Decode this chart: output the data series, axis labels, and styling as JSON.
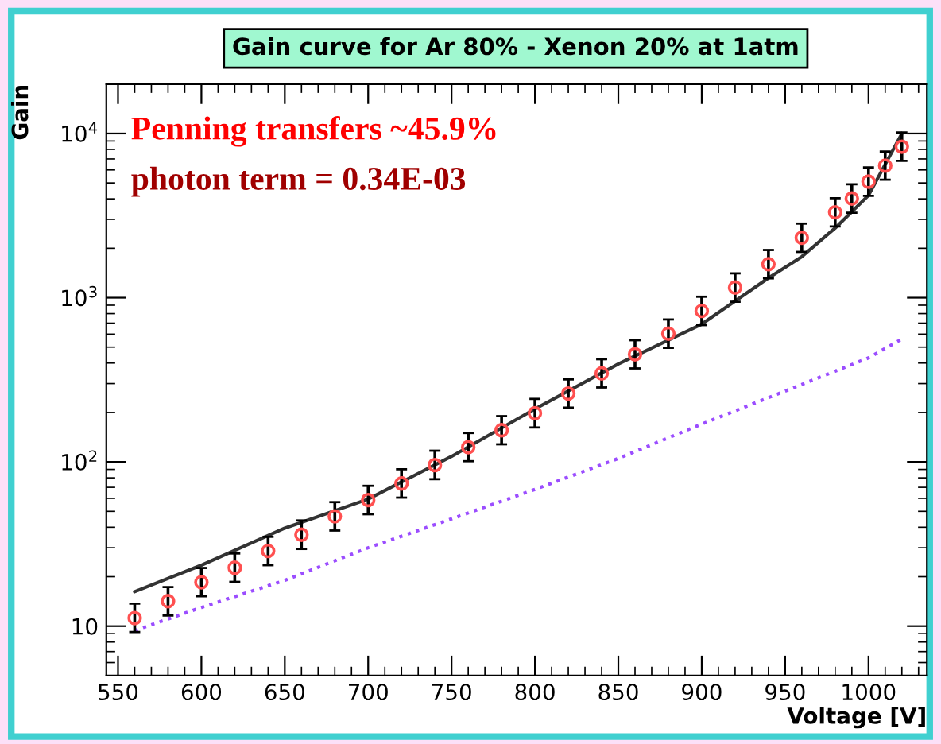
{
  "chart_data": {
    "type": "scatter",
    "title": "Gain curve for Ar 80% - Xenon 20% at 1atm",
    "xlabel": "Voltage [V]",
    "ylabel": "Gain",
    "annotations": [
      "Penning transfers ~45.9%",
      "photon term = 0.34E-03"
    ],
    "log": "y",
    "grid": false,
    "xlim": [
      543,
      1035
    ],
    "ylim": [
      5,
      20000
    ],
    "xticks": [
      550,
      600,
      650,
      700,
      750,
      800,
      850,
      900,
      950,
      1000
    ],
    "yticks": [
      {
        "value": 10,
        "label": "10"
      },
      {
        "value": 100,
        "label": "10$^{2}$"
      },
      {
        "value": 1000,
        "label": "10$^{3}$"
      },
      {
        "value": 10000,
        "label": "10$^{4}$"
      }
    ],
    "series": [
      {
        "marker": "circle",
        "color": "#ff5050",
        "x": [
          560,
          580,
          600,
          620,
          640,
          660,
          680,
          700,
          720,
          740,
          760,
          780,
          800,
          820,
          840,
          860,
          880,
          900,
          920,
          940,
          960,
          980,
          990,
          1000,
          1010,
          1020
        ],
        "values": [
          11.2,
          14.2,
          18.5,
          22.7,
          28.7,
          36,
          46.6,
          58.6,
          73.9,
          95.7,
          123,
          156,
          198,
          261,
          346,
          452,
          604,
          831,
          1153,
          1600,
          2317,
          3311,
          4018,
          5093,
          6370,
          8310
        ],
        "errors": [
          [
            9.2,
            13.7
          ],
          [
            11.6,
            17.3
          ],
          [
            15.2,
            22.6
          ],
          [
            18.6,
            27.7
          ],
          [
            23.5,
            35
          ],
          [
            29.5,
            44
          ],
          [
            38.2,
            56.9
          ],
          [
            48,
            71.5
          ],
          [
            60.6,
            90.2
          ],
          [
            78.5,
            117
          ],
          [
            101,
            150
          ],
          [
            128,
            190
          ],
          [
            162,
            242
          ],
          [
            214,
            318
          ],
          [
            284,
            422
          ],
          [
            371,
            551
          ],
          [
            495,
            737
          ],
          [
            681,
            1014
          ],
          [
            945,
            1407
          ],
          [
            1312,
            1952
          ],
          [
            1900,
            2827
          ],
          [
            2715,
            4039
          ],
          [
            3295,
            4902
          ],
          [
            4176,
            6213
          ],
          [
            5223,
            7771
          ],
          [
            6814,
            10138
          ]
        ]
      },
      {
        "type": "line",
        "marker": "none",
        "line_style": "solid",
        "color": "#333333",
        "x": [
          560,
          600,
          650,
          700,
          750,
          800,
          850,
          900,
          940,
          960,
          980,
          1000,
          1020
        ],
        "values": [
          16.2,
          23.5,
          39.5,
          59.4,
          108,
          210,
          395,
          690,
          1318,
          1778,
          2655,
          4200,
          10000
        ]
      },
      {
        "type": "line",
        "marker": "none",
        "line_style": "dotted",
        "color": "#9b4dff",
        "x": [
          560,
          600,
          650,
          700,
          750,
          800,
          850,
          900,
          950,
          1000,
          1020
        ],
        "values": [
          9.4,
          13,
          19,
          30,
          45,
          68,
          105,
          170,
          270,
          430,
          560
        ]
      }
    ]
  }
}
